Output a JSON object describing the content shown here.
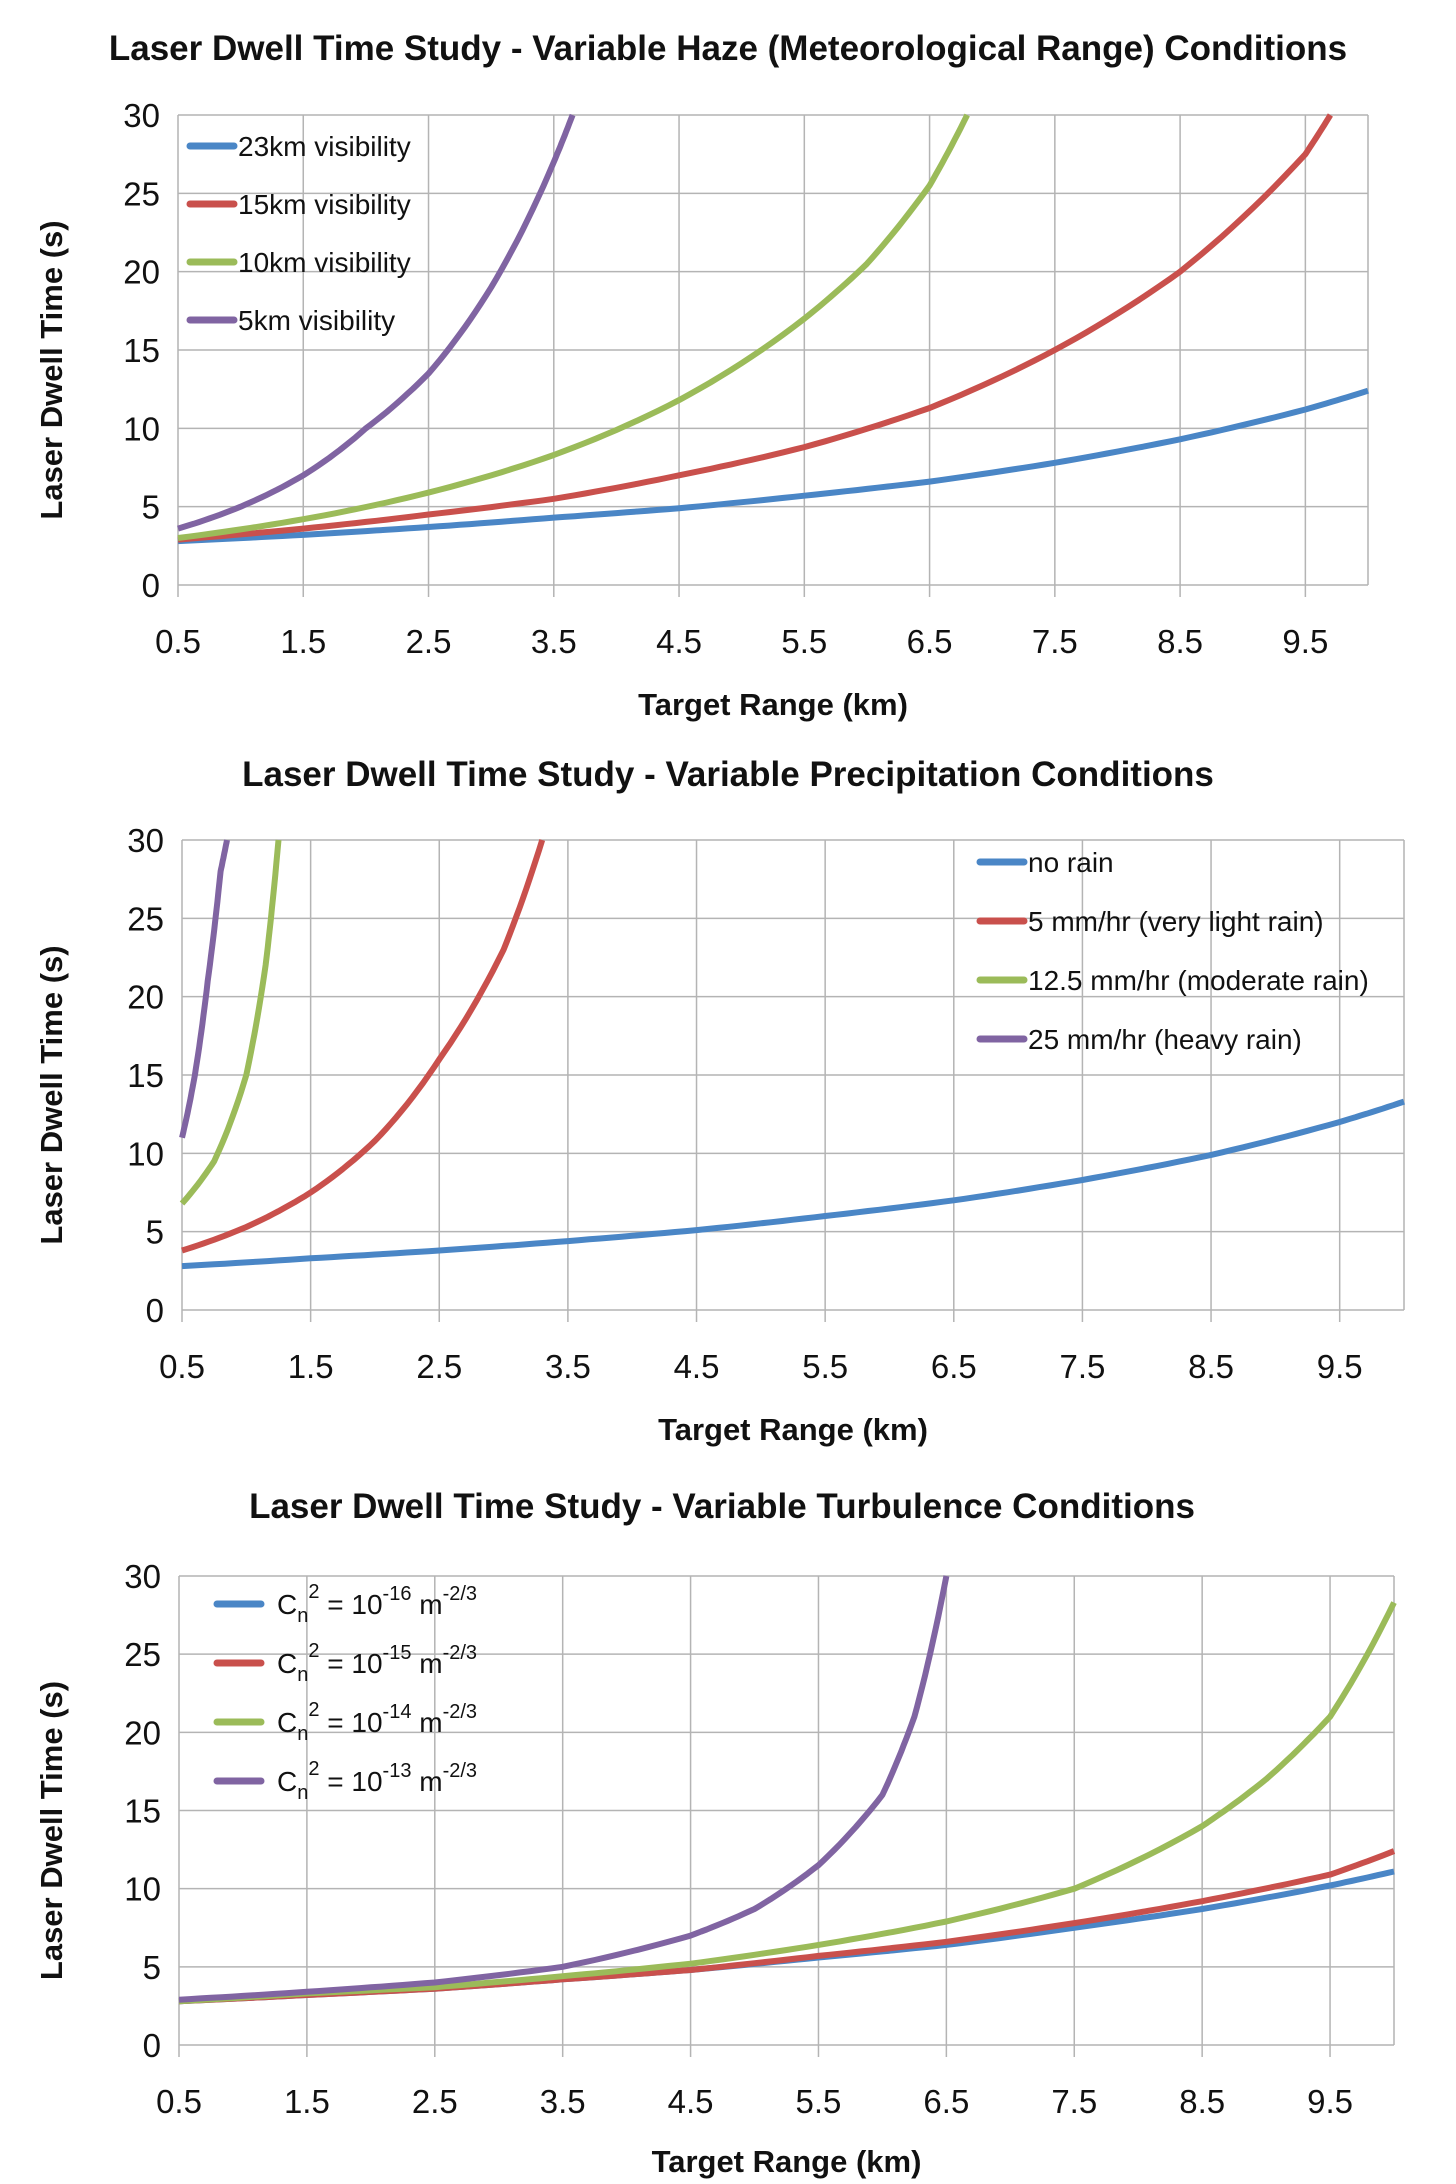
{
  "colors": {
    "blue": "#4a86c6",
    "red": "#c9504c",
    "green": "#9bbb59",
    "purple": "#8064a2"
  },
  "chart_data": [
    {
      "type": "line",
      "title": "Laser Dwell Time Study - Variable Haze (Meteorological Range) Conditions",
      "xlabel": "Target Range (km)",
      "ylabel": "Laser Dwell Time (s)",
      "xlim": [
        0.5,
        10
      ],
      "ylim": [
        0,
        30
      ],
      "xticks": [
        "0.5",
        "1.5",
        "2.5",
        "3.5",
        "4.5",
        "5.5",
        "6.5",
        "7.5",
        "8.5",
        "9.5"
      ],
      "yticks": [
        "0",
        "5",
        "10",
        "15",
        "20",
        "25",
        "30"
      ],
      "grid": true,
      "legend": "top-left",
      "series": [
        {
          "name": "23km visibility",
          "color": "#4a86c6",
          "x": [
            0.5,
            1.5,
            2.5,
            3.5,
            4.5,
            5.5,
            6.5,
            7.5,
            8.5,
            9.5,
            10
          ],
          "y": [
            2.8,
            3.2,
            3.7,
            4.3,
            4.9,
            5.7,
            6.6,
            7.8,
            9.3,
            11.2,
            12.4
          ]
        },
        {
          "name": "15km visibility",
          "color": "#c9504c",
          "x": [
            0.5,
            1.5,
            2.5,
            3.5,
            4.5,
            5.5,
            6.5,
            7.5,
            8.5,
            9.5,
            9.7
          ],
          "y": [
            2.9,
            3.6,
            4.5,
            5.5,
            7.0,
            8.8,
            11.3,
            15,
            20,
            27.5,
            30
          ]
        },
        {
          "name": "10km visibility",
          "color": "#9bbb59",
          "x": [
            0.5,
            1.5,
            2.5,
            3.5,
            4.5,
            5.5,
            6.0,
            6.5,
            6.8
          ],
          "y": [
            3.0,
            4.2,
            5.9,
            8.3,
            11.8,
            17,
            20.5,
            25.5,
            30
          ]
        },
        {
          "name": "5km visibility",
          "color": "#8064a2",
          "x": [
            0.5,
            1.0,
            1.5,
            2.0,
            2.5,
            3.0,
            3.5,
            3.65
          ],
          "y": [
            3.6,
            5.0,
            7.0,
            10,
            13.5,
            19,
            27,
            30
          ]
        }
      ]
    },
    {
      "type": "line",
      "title": "Laser Dwell Time Study - Variable Precipitation Conditions",
      "xlabel": "Target Range (km)",
      "ylabel": "Laser Dwell Time (s)",
      "xlim": [
        0.5,
        10
      ],
      "ylim": [
        0,
        30
      ],
      "xticks": [
        "0.5",
        "1.5",
        "2.5",
        "3.5",
        "4.5",
        "5.5",
        "6.5",
        "7.5",
        "8.5",
        "9.5"
      ],
      "yticks": [
        "0",
        "5",
        "10",
        "15",
        "20",
        "25",
        "30"
      ],
      "grid": true,
      "legend": "top-right",
      "series": [
        {
          "name": "no rain",
          "color": "#4a86c6",
          "x": [
            0.5,
            1.5,
            2.5,
            3.5,
            4.5,
            5.5,
            6.5,
            7.5,
            8.5,
            9.5,
            10
          ],
          "y": [
            2.8,
            3.3,
            3.8,
            4.4,
            5.1,
            6.0,
            7.0,
            8.3,
            9.9,
            12,
            13.3
          ]
        },
        {
          "name": "5 mm/hr (very light rain)",
          "color": "#c9504c",
          "x": [
            0.5,
            1.0,
            1.5,
            2.0,
            2.5,
            3.0,
            3.3
          ],
          "y": [
            3.8,
            5.3,
            7.5,
            10.8,
            16,
            23,
            30
          ]
        },
        {
          "name": "12.5 mm/hr (moderate rain)",
          "color": "#9bbb59",
          "x": [
            0.5,
            0.75,
            1.0,
            1.15,
            1.25
          ],
          "y": [
            6.8,
            9.5,
            15,
            22,
            30
          ]
        },
        {
          "name": "25 mm/hr (heavy rain)",
          "color": "#8064a2",
          "x": [
            0.5,
            0.6,
            0.7,
            0.8,
            0.85
          ],
          "y": [
            11,
            15,
            21,
            28,
            30
          ]
        }
      ]
    },
    {
      "type": "line",
      "title": "Laser Dwell Time Study - Variable Turbulence Conditions",
      "xlabel": "Target Range (km)",
      "ylabel": "Laser Dwell Time (s)",
      "xlim": [
        0.5,
        10
      ],
      "ylim": [
        0,
        30
      ],
      "xticks": [
        "0.5",
        "1.5",
        "2.5",
        "3.5",
        "4.5",
        "5.5",
        "6.5",
        "7.5",
        "8.5",
        "9.5"
      ],
      "yticks": [
        "0",
        "5",
        "10",
        "15",
        "20",
        "25",
        "30"
      ],
      "grid": true,
      "legend": "top-left",
      "series": [
        {
          "name": "Cn2 = 10-16 m-2/3",
          "parts": {
            "c": "C",
            "sub": "n",
            "sq": "2",
            "eq": " = 10",
            "exp": "-16",
            "m": " m",
            "mexp": "-2/3"
          },
          "color": "#4a86c6",
          "x": [
            0.5,
            1.5,
            2.5,
            3.5,
            4.5,
            5.5,
            6.5,
            7.5,
            8.5,
            9.5,
            10
          ],
          "y": [
            2.8,
            3.2,
            3.6,
            4.2,
            4.8,
            5.6,
            6.4,
            7.5,
            8.7,
            10.2,
            11.1
          ]
        },
        {
          "name": "Cn2 = 10-15 m-2/3",
          "parts": {
            "c": "C",
            "sub": "n",
            "sq": "2",
            "eq": " = 10",
            "exp": "-15",
            "m": " m",
            "mexp": "-2/3"
          },
          "color": "#c9504c",
          "x": [
            0.5,
            1.5,
            2.5,
            3.5,
            4.5,
            5.5,
            6.5,
            7.5,
            8.5,
            9.5,
            10
          ],
          "y": [
            2.8,
            3.2,
            3.6,
            4.2,
            4.8,
            5.7,
            6.6,
            7.8,
            9.2,
            10.9,
            12.4
          ]
        },
        {
          "name": "Cn2 = 10-14 m-2/3",
          "parts": {
            "c": "C",
            "sub": "n",
            "sq": "2",
            "eq": " = 10",
            "exp": "-14",
            "m": " m",
            "mexp": "-2/3"
          },
          "color": "#9bbb59",
          "x": [
            0.5,
            1.5,
            2.5,
            3.5,
            4.5,
            5.5,
            6.5,
            7.5,
            8.5,
            9.0,
            9.5,
            10
          ],
          "y": [
            2.8,
            3.3,
            3.7,
            4.4,
            5.2,
            6.4,
            7.9,
            10,
            14,
            17,
            21,
            28.3
          ]
        },
        {
          "name": "Cn2 = 10-13 m-2/3",
          "parts": {
            "c": "C",
            "sub": "n",
            "sq": "2",
            "eq": " = 10",
            "exp": "-13",
            "m": " m",
            "mexp": "-2/3"
          },
          "color": "#8064a2",
          "x": [
            0.5,
            1.5,
            2.5,
            3.5,
            4.5,
            5.0,
            5.5,
            6.0,
            6.25,
            6.5
          ],
          "y": [
            2.9,
            3.4,
            4.0,
            5.0,
            7.0,
            8.7,
            11.5,
            16,
            21,
            30
          ]
        }
      ]
    }
  ]
}
